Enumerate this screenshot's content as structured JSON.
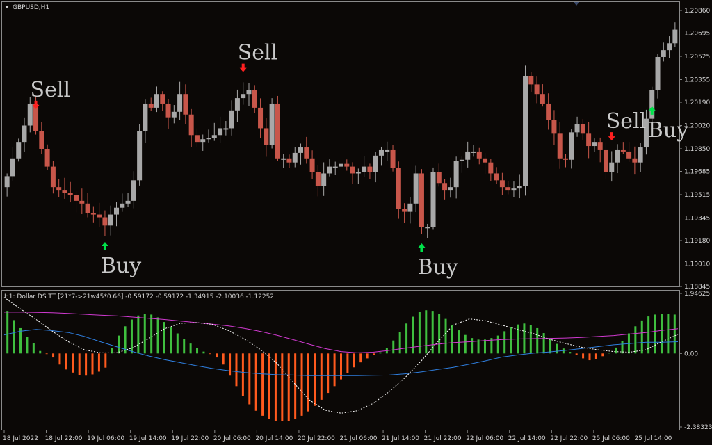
{
  "window": {
    "symbol_title": "GBPUSD,H1"
  },
  "indicator": {
    "label": "H1: Dollar DS TT [21*7->21w45*0.66] -0.59172 -0.59172 -1.34915 -2.10036 -1.12252"
  },
  "colors": {
    "bull": "#a8a8a8",
    "bear": "#c8564a",
    "hist_pos": "#3fbf3f",
    "hist_neg": "#ff5a1e",
    "magenta": "#d13ad1",
    "blue": "#2f7fe0",
    "dashed": "#ffffff",
    "buy_arrow": "#00e24a",
    "sell_arrow": "#ff2020",
    "frame": "#8a8a8a"
  },
  "chart_data": [
    {
      "type": "candlestick",
      "symbol": "GBPUSD",
      "timeframe": "H1",
      "yticks": [
        "1.20860",
        "1.20695",
        "1.20525",
        "1.20355",
        "1.20190",
        "1.20020",
        "1.19850",
        "1.19685",
        "1.19515",
        "1.19345",
        "1.19180",
        "1.19010",
        "1.18845"
      ],
      "ylim": [
        1.18845,
        1.2086
      ],
      "xticks": [
        "18 Jul 2022",
        "18 Jul 22:00",
        "19 Jul 06:00",
        "19 Jul 14:00",
        "19 Jul 22:00",
        "20 Jul 06:00",
        "20 Jul 14:00",
        "20 Jul 22:00",
        "21 Jul 06:00",
        "21 Jul 14:00",
        "21 Jul 22:00",
        "22 Jul 06:00",
        "22 Jul 14:00",
        "22 Jul 22:00",
        "25 Jul 06:00",
        "25 Jul 14:00"
      ],
      "close": [
        1.1965,
        1.1978,
        1.199,
        1.2002,
        1.2018,
        1.1998,
        1.1985,
        1.1972,
        1.1957,
        1.1955,
        1.1953,
        1.1951,
        1.1947,
        1.1945,
        1.1938,
        1.1937,
        1.1935,
        1.1929,
        1.1937,
        1.1942,
        1.1945,
        1.1947,
        1.1962,
        1.1998,
        1.2018,
        1.2015,
        1.2025,
        1.2018,
        1.2008,
        1.2012,
        1.2025,
        1.201,
        1.1995,
        1.199,
        1.1992,
        1.1993,
        1.1995,
        1.2,
        1.2,
        1.2013,
        1.2022,
        1.2025,
        1.2028,
        1.2015,
        1.2,
        1.1988,
        1.2018,
        1.1978,
        1.1978,
        1.1975,
        1.1982,
        1.1986,
        1.1978,
        1.1968,
        1.1958,
        1.1967,
        1.1972,
        1.1972,
        1.1974,
        1.1972,
        1.1967,
        1.1968,
        1.1972,
        1.1968,
        1.198,
        1.1984,
        1.1984,
        1.1971,
        1.1941,
        1.1939,
        1.1945,
        1.1967,
        1.1928,
        1.1928,
        1.1968,
        1.196,
        1.1955,
        1.1957,
        1.1976,
        1.1977,
        1.1983,
        1.1983,
        1.1978,
        1.1975,
        1.1967,
        1.1962,
        1.1957,
        1.1955,
        1.1956,
        1.1958,
        1.2038,
        1.2032,
        1.2025,
        1.2018,
        1.2006,
        1.1996,
        1.1978,
        1.1977,
        1.1997,
        1.2003,
        1.1996,
        1.1987,
        1.199,
        1.1984,
        1.1968,
        1.1975,
        1.1984,
        1.1983,
        1.1978,
        1.1975,
        1.1986,
        1.2007,
        1.2028,
        1.2052,
        1.2057,
        1.2062,
        1.2072
      ],
      "annotations": [
        {
          "text": "Sell",
          "type": "sell",
          "index": 5
        },
        {
          "text": "Buy",
          "type": "buy",
          "index": 17
        },
        {
          "text": "Sell",
          "type": "sell",
          "index": 41
        },
        {
          "text": "Buy",
          "type": "buy",
          "index": 72
        },
        {
          "text": "Sell",
          "type": "sell",
          "index": 105
        },
        {
          "text": "Buy",
          "type": "buy",
          "index": 112
        }
      ]
    },
    {
      "type": "histogram+lines",
      "yticks": [
        "1.94625",
        "0.00",
        "-2.38323"
      ],
      "ylim": [
        -2.38323,
        1.94625
      ],
      "histogram": [
        1.38,
        1.08,
        0.82,
        0.54,
        0.33,
        0.08,
        -0.02,
        -0.13,
        -0.36,
        -0.52,
        -0.62,
        -0.7,
        -0.72,
        -0.68,
        -0.59,
        -0.46,
        0.18,
        0.58,
        0.88,
        1.1,
        1.23,
        1.28,
        1.26,
        1.17,
        1.02,
        0.84,
        0.65,
        0.48,
        0.32,
        0.18,
        0.06,
        -0.02,
        -0.13,
        -0.36,
        -0.72,
        -1.06,
        -1.38,
        -1.65,
        -1.86,
        -2.02,
        -2.12,
        -2.18,
        -2.2,
        -2.18,
        -2.12,
        -2.02,
        -1.88,
        -1.7,
        -1.5,
        -1.28,
        -1.06,
        -0.84,
        -0.64,
        -0.45,
        -0.29,
        -0.16,
        -0.06,
        0.04,
        0.18,
        0.42,
        0.7,
        0.97,
        1.19,
        1.34,
        1.4,
        1.38,
        1.28,
        1.12,
        0.93,
        0.75,
        0.6,
        0.5,
        0.45,
        0.45,
        0.5,
        0.58,
        0.72,
        0.85,
        0.94,
        0.97,
        0.93,
        0.82,
        0.66,
        0.48,
        0.31,
        0.16,
        0.05,
        -0.04,
        -0.16,
        -0.22,
        -0.18,
        -0.09,
        0.02,
        0.19,
        0.41,
        0.65,
        0.88,
        1.07,
        1.2,
        1.26,
        1.29,
        1.28,
        1.26
      ],
      "magenta": [
        1.34,
        1.34,
        1.33,
        1.32,
        1.3,
        1.27,
        1.24,
        1.22,
        1.18,
        1.14,
        1.1,
        1.05,
        1.0,
        0.95,
        0.89,
        0.81,
        0.71,
        0.59,
        0.45,
        0.3,
        0.16,
        0.06,
        0.02,
        0.04,
        0.1,
        0.17,
        0.24,
        0.3,
        0.35,
        0.38,
        0.42,
        0.45,
        0.47,
        0.48,
        0.49,
        0.5,
        0.52,
        0.55,
        0.58,
        0.63,
        0.68,
        0.75,
        0.8
      ],
      "blue": [
        0.6,
        0.72,
        0.78,
        0.74,
        0.68,
        0.55,
        0.38,
        0.22,
        0.06,
        -0.08,
        -0.2,
        -0.3,
        -0.4,
        -0.49,
        -0.56,
        -0.62,
        -0.66,
        -0.69,
        -0.7,
        -0.72,
        -0.72,
        -0.72,
        -0.72,
        -0.71,
        -0.7,
        -0.66,
        -0.6,
        -0.52,
        -0.45,
        -0.35,
        -0.24,
        -0.12,
        -0.05,
        0.01,
        0.05,
        0.1,
        0.16,
        0.22,
        0.28,
        0.32,
        0.36,
        0.36,
        0.38
      ],
      "dashed": [
        1.82,
        1.45,
        1.1,
        0.72,
        0.38,
        0.12,
        0.02,
        0.02,
        0.18,
        0.48,
        0.8,
        0.98,
        1.0,
        0.94,
        0.74,
        0.46,
        0.12,
        -0.32,
        -0.92,
        -1.5,
        -1.84,
        -1.94,
        -1.86,
        -1.62,
        -1.24,
        -0.78,
        -0.24,
        0.36,
        0.92,
        1.12,
        1.06,
        0.92,
        0.78,
        0.64,
        0.46,
        0.32,
        0.2,
        0.12,
        0.06,
        0.04,
        0.12,
        0.38,
        0.62
      ]
    }
  ]
}
